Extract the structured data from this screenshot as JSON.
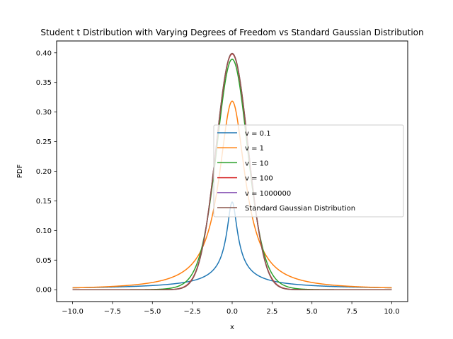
{
  "chart_data": {
    "type": "line",
    "title": "Student t Distribution with Varying Degrees of Freedom vs Standard Gaussian Distribution",
    "xlabel": "x",
    "ylabel": "PDF",
    "xlim": [
      -11.0,
      11.0
    ],
    "ylim": [
      -0.02,
      0.42
    ],
    "x_ticks": [
      -10.0,
      -7.5,
      -5.0,
      -2.5,
      0.0,
      2.5,
      5.0,
      7.5,
      10.0
    ],
    "x_tick_labels": [
      "−10.0",
      "−7.5",
      "−5.0",
      "−2.5",
      "0.0",
      "2.5",
      "5.0",
      "7.5",
      "10.0"
    ],
    "y_ticks": [
      0.0,
      0.05,
      0.1,
      0.15,
      0.2,
      0.25,
      0.3,
      0.35,
      0.4
    ],
    "y_tick_labels": [
      "0.00",
      "0.05",
      "0.10",
      "0.15",
      "0.20",
      "0.25",
      "0.30",
      "0.35",
      "0.40"
    ],
    "x_domain": [
      -10,
      10
    ],
    "grid": false,
    "legend_position": "center-right",
    "series": [
      {
        "name": "v = 0.1",
        "color": "#1f77b4",
        "dist": "t",
        "df": 0.1
      },
      {
        "name": "v = 1",
        "color": "#ff7f0e",
        "dist": "t",
        "df": 1
      },
      {
        "name": "v = 10",
        "color": "#2ca02c",
        "dist": "t",
        "df": 10
      },
      {
        "name": "v = 100",
        "color": "#d62728",
        "dist": "t",
        "df": 100
      },
      {
        "name": "v = 1000000",
        "color": "#9467bd",
        "dist": "t",
        "df": 1000000
      },
      {
        "name": "Standard Gaussian Distribution",
        "color": "#8c564b",
        "dist": "normal"
      }
    ]
  }
}
